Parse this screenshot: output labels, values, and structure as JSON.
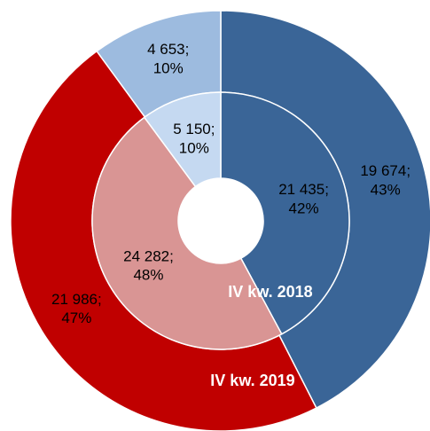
{
  "chart_data": {
    "type": "donut",
    "series": [
      {
        "name": "IV kw. 2019",
        "ring": "outer",
        "values": [
          19674,
          21986,
          4653
        ],
        "value_labels": [
          "19 674;",
          "21 986;",
          "4 653;"
        ],
        "percents": [
          43,
          47,
          10
        ],
        "percent_labels": [
          "43%",
          "47%",
          "10%"
        ],
        "colors": [
          "#3a6597",
          "#c00000",
          "#9dbbdf"
        ]
      },
      {
        "name": "IV kw. 2018",
        "ring": "inner",
        "values": [
          21435,
          24282,
          5150
        ],
        "value_labels": [
          "21 435;",
          "24 282;",
          "5 150;"
        ],
        "percents": [
          42,
          48,
          10
        ],
        "percent_labels": [
          "42%",
          "48%",
          "10%"
        ],
        "colors": [
          "#3a6597",
          "#d99594",
          "#c5d9f1"
        ]
      }
    ]
  }
}
